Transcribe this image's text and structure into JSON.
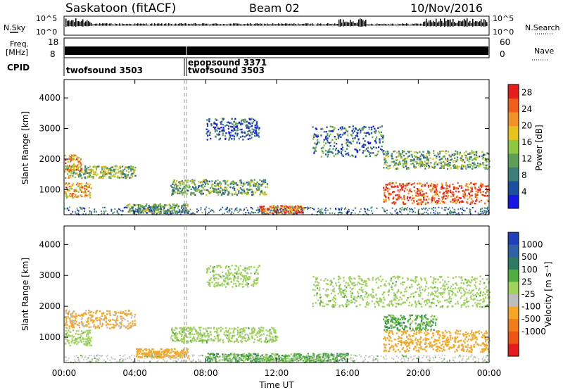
{
  "header": {
    "station": "Saskatoon (fitACF)",
    "beam": "Beam 02",
    "date": "10/Nov/2016"
  },
  "left_labels": {
    "nsky": "N.Sky",
    "freq_line1": "Freq.",
    "freq_line2": "[MHz]",
    "cpid": "CPID"
  },
  "right_labels": {
    "nsearch": "N.Search",
    "nave": "Nave"
  },
  "noise_ticks": {
    "left": [
      "10^5",
      "10^0"
    ],
    "right": [
      "10^5",
      "10^0"
    ]
  },
  "freq_ticks": {
    "left": [
      "18",
      "8"
    ],
    "right": [
      "60",
      "0"
    ]
  },
  "cpid_segments": [
    {
      "name": "twofsound 3503",
      "start": "00:00",
      "end": "06:54"
    },
    {
      "name": "epopsound 3371",
      "start": "06:54",
      "end": "06:58"
    },
    {
      "name": "twofsound 3503",
      "start": "06:58",
      "end": "24:00"
    }
  ],
  "colors": {
    "power_scale": [
      "#1515e6",
      "#1d4fa0",
      "#3c7f7a",
      "#5e9e55",
      "#8ec83e",
      "#e8c21a",
      "#f29224",
      "#f05e1e",
      "#e81c1c"
    ],
    "velocity_scale": [
      "#1f3fbd",
      "#2e61a8",
      "#2f7a63",
      "#4fae3e",
      "#9fd35a",
      "#bdbdbd",
      "#f5a623",
      "#f27c16",
      "#ee5412",
      "#e81c1c"
    ],
    "grey_scatter": "#c8c8c8"
  },
  "chart_data": [
    {
      "type": "heatmap",
      "title": "Power",
      "xlabel": "Time UT",
      "ylabel": "Slant Range [km]",
      "x_ticks": [
        "00:00",
        "04:00",
        "08:00",
        "12:00",
        "16:00",
        "20:00",
        "00:00"
      ],
      "y_ticks": [
        "1000",
        "2000",
        "3000",
        "4000"
      ],
      "x_range_hours": [
        0,
        24
      ],
      "y_range_km": [
        180,
        4600
      ],
      "colorbar": {
        "label": "Power [dB]",
        "ticks": [
          "4",
          "8",
          "12",
          "16",
          "20",
          "24",
          "28"
        ],
        "range": [
          0,
          30
        ]
      },
      "regions": [
        {
          "t_start": 0.0,
          "t_end": 1.5,
          "r_center": 1000,
          "r_width": 250,
          "value": 20
        },
        {
          "t_start": 0.0,
          "t_end": 4.0,
          "r_center": 1600,
          "r_width": 200,
          "value": 14
        },
        {
          "t_start": 0.0,
          "t_end": 1.0,
          "r_center": 1900,
          "r_width": 250,
          "value": 22
        },
        {
          "t_start": 3.5,
          "t_end": 7.0,
          "r_center": 400,
          "r_width": 150,
          "value": 12
        },
        {
          "t_start": 6.0,
          "t_end": 11.5,
          "r_center": 1100,
          "r_width": 250,
          "value": 12
        },
        {
          "t_start": 8.0,
          "t_end": 11.0,
          "r_center": 3000,
          "r_width": 350,
          "value": 6
        },
        {
          "t_start": 11.0,
          "t_end": 13.5,
          "r_center": 350,
          "r_width": 150,
          "value": 24
        },
        {
          "t_start": 14.0,
          "t_end": 18.0,
          "r_center": 2600,
          "r_width": 500,
          "value": 8
        },
        {
          "t_start": 18.0,
          "t_end": 24.0,
          "r_center": 900,
          "r_width": 350,
          "value": 26
        },
        {
          "t_start": 18.0,
          "t_end": 24.0,
          "r_center": 2000,
          "r_width": 300,
          "value": 12
        }
      ]
    },
    {
      "type": "heatmap",
      "title": "Velocity",
      "xlabel": "Time UT",
      "ylabel": "Slant Range [km]",
      "x_ticks": [
        "00:00",
        "04:00",
        "08:00",
        "12:00",
        "16:00",
        "20:00",
        "00:00"
      ],
      "y_ticks": [
        "1000",
        "2000",
        "3000",
        "4000"
      ],
      "x_range_hours": [
        0,
        24
      ],
      "y_range_km": [
        180,
        4600
      ],
      "colorbar": {
        "label": "Velocity [m s⁻¹]",
        "ticks": [
          "1000",
          "500",
          "100",
          "25",
          "-25",
          "-100",
          "-500",
          "-1000"
        ]
      },
      "regions": [
        {
          "t_start": 0.0,
          "t_end": 4.0,
          "r_center": 1600,
          "r_width": 300,
          "value": -150
        },
        {
          "t_start": 0.0,
          "t_end": 1.5,
          "r_center": 1000,
          "r_width": 250,
          "value": 0
        },
        {
          "t_start": 4.0,
          "t_end": 7.0,
          "r_center": 500,
          "r_width": 150,
          "value": -300
        },
        {
          "t_start": 8.0,
          "t_end": 11.0,
          "r_center": 3000,
          "r_width": 350,
          "value": 0
        },
        {
          "t_start": 6.0,
          "t_end": 12.0,
          "r_center": 1100,
          "r_width": 250,
          "value": 0
        },
        {
          "t_start": 8.0,
          "t_end": 16.0,
          "r_center": 350,
          "r_width": 150,
          "value": 60
        },
        {
          "t_start": 14.0,
          "t_end": 24.0,
          "r_center": 2500,
          "r_width": 500,
          "value": 0
        },
        {
          "t_start": 18.0,
          "t_end": 24.0,
          "r_center": 900,
          "r_width": 350,
          "value": -250
        },
        {
          "t_start": 18.0,
          "t_end": 21.0,
          "r_center": 1500,
          "r_width": 250,
          "value": 60
        }
      ]
    }
  ]
}
